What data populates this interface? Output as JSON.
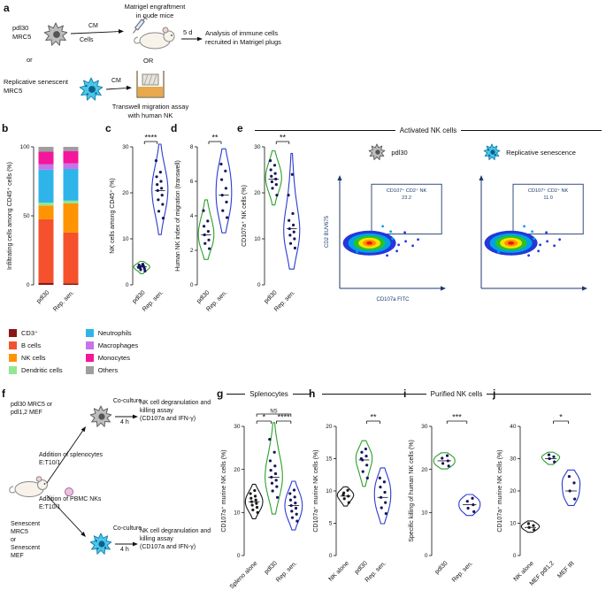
{
  "panels": {
    "a": "a",
    "b": "b",
    "c": "c",
    "d": "d",
    "e": "e",
    "f": "f",
    "g": "g",
    "h": "h",
    "i": "i",
    "j": "j"
  },
  "panel_a": {
    "cell1_label": "pdl30\nMRC5",
    "or1": "or",
    "cell2_label": "Replicative senescent\nMRC5",
    "cm1": "CM",
    "cells_label": "Cells",
    "cm2": "CM",
    "matrigel_title": "Matrigel engraftment\nin nude mice",
    "duration": "5 d",
    "analysis": "Analysis of immune cells\nrecruited in Matrigel plugs",
    "or2": "OR",
    "transwell_caption": "Transwell migration assay\nwith human NK"
  },
  "legend": {
    "items": [
      {
        "label": "CD3⁺",
        "color": "#8c1515"
      },
      {
        "label": "B cells",
        "color": "#f4512c"
      },
      {
        "label": "NK cells",
        "color": "#ff9300"
      },
      {
        "label": "Dendritic cells",
        "color": "#90e890"
      },
      {
        "label": "Neutrophils",
        "color": "#2fb4ea"
      },
      {
        "label": "Macrophages",
        "color": "#c873e8"
      },
      {
        "label": "Monocytes",
        "color": "#f4169b"
      },
      {
        "label": "Others",
        "color": "#9e9e9e"
      }
    ]
  },
  "panel_e": {
    "header": "Activated NK cells",
    "flow": {
      "left_title": "pdl30",
      "right_title": "Replicative senescence",
      "gate_label": "CD107⁺ CD2⁺ NK",
      "left_value": "23.2",
      "right_value": "11.0",
      "y_axis": "CD2 BUV675",
      "x_axis": "CD107a FITC"
    }
  },
  "panel_f": {
    "top_cells": "pdl30 MRC5 or\npdl1,2 MEF",
    "coculture_top": "Co-culture",
    "hours_top": "4 h",
    "assay_top": "NK cell degranulation and\nkilling assay\n(CD107a and IFN-γ)",
    "splenocytes": "Addition of splenocytes\nE:T10/1",
    "pbmc": "Addition of PBMC NKs\nE:T10/1",
    "bottom_cells": "Senescent\nMRC5\nor\nSenescent\nMEF",
    "coculture_bottom": "Co-culture",
    "hours_bottom": "4 h",
    "assay_bottom": "NK cell degranulation and\nkilling assay\n(CD107a and IFN-γ)"
  },
  "panel_g_header": "Splenocytes",
  "panel_hij_header": "Purified NK cells",
  "chart_data": [
    {
      "id": "b",
      "type": "stacked_bar",
      "ylabel": "Infiltrating cells among CD45⁺ cells (%)",
      "ylim": [
        0,
        100
      ],
      "yticks": [
        0,
        50,
        100
      ],
      "categories": [
        "pdl30",
        "Rep. sen."
      ],
      "series": [
        {
          "name": "CD3⁺",
          "color": "#8c1515",
          "values": [
            1.5,
            1
          ]
        },
        {
          "name": "B cells",
          "color": "#f4512c",
          "values": [
            46,
            37
          ]
        },
        {
          "name": "NK cells",
          "color": "#ff9300",
          "values": [
            10,
            21
          ]
        },
        {
          "name": "Dendritic cells",
          "color": "#90e890",
          "values": [
            2,
            2
          ]
        },
        {
          "name": "Neutrophils",
          "color": "#2fb4ea",
          "values": [
            24,
            23
          ]
        },
        {
          "name": "Macrophages",
          "color": "#c873e8",
          "values": [
            4,
            4
          ]
        },
        {
          "name": "Monocytes",
          "color": "#f4169b",
          "values": [
            9,
            9
          ]
        },
        {
          "name": "Others",
          "color": "#9e9e9e",
          "values": [
            3.5,
            3
          ]
        }
      ]
    },
    {
      "id": "c",
      "type": "violin",
      "ylabel": "NK cells among CD45⁺ (%)",
      "ylim": [
        0,
        30
      ],
      "yticks": [
        0,
        10,
        20,
        30
      ],
      "groups": [
        {
          "label": "pdl30",
          "color": "#2ca02c",
          "points": [
            3.0,
            3.3,
            3.5,
            3.7,
            3.9,
            4.0,
            4.1,
            4.3,
            4.5,
            3.8,
            4.2
          ]
        },
        {
          "label": "Rep. sen.",
          "color": "#2a3bd0",
          "points": [
            14.5,
            16,
            17.5,
            18.5,
            19.5,
            20.5,
            21,
            21.8,
            22.5,
            23.5,
            24.5,
            27
          ]
        }
      ],
      "sigs": [
        {
          "from": 0,
          "to": 1,
          "label": "****"
        }
      ]
    },
    {
      "id": "d",
      "type": "violin",
      "ylabel": "Human NK index of migration (transwell)",
      "ylim": [
        0,
        8
      ],
      "yticks": [
        0,
        2,
        4,
        6,
        8
      ],
      "groups": [
        {
          "label": "pdl30",
          "color": "#2ca02c",
          "points": [
            2.1,
            2.4,
            2.6,
            2.9,
            3.1,
            3.4,
            3.7,
            4.3
          ]
        },
        {
          "label": "Rep. sen.",
          "color": "#2a3bd0",
          "points": [
            3.9,
            4.3,
            4.8,
            5.2,
            5.6,
            6.1,
            6.6,
            7.0
          ]
        }
      ],
      "sigs": [
        {
          "from": 0,
          "to": 1,
          "label": "**"
        }
      ]
    },
    {
      "id": "e",
      "type": "violin",
      "ylabel": "CD107a⁺ NK cells (%)",
      "ylim": [
        0,
        30
      ],
      "yticks": [
        0,
        10,
        20,
        30
      ],
      "groups": [
        {
          "label": "pdl30",
          "color": "#2ca02c",
          "points": [
            19.5,
            21,
            21.8,
            22.4,
            23,
            23.6,
            24.2,
            25,
            26,
            27
          ]
        },
        {
          "label": "Rep. sen.",
          "color": "#2a3bd0",
          "points": [
            8,
            9,
            10,
            10.8,
            11.5,
            12.2,
            13,
            14,
            15.5,
            19.5,
            24
          ]
        }
      ],
      "sigs": [
        {
          "from": 0,
          "to": 1,
          "label": "**"
        }
      ]
    },
    {
      "id": "g",
      "type": "violin",
      "ylabel": "CD107a⁺ murine NK cells (%)",
      "ylim": [
        0,
        30
      ],
      "yticks": [
        0,
        10,
        20,
        30
      ],
      "groups": [
        {
          "label": "Spleno alone",
          "color": "#1a1a1a",
          "point_color": "#1a1a1a",
          "points": [
            10,
            10.6,
            11.2,
            11.7,
            12.1,
            12.5,
            12.9,
            13.3,
            13.8,
            14.4,
            15.1
          ]
        },
        {
          "label": "pdl30",
          "color": "#2ca02c",
          "points": [
            13.5,
            15,
            16,
            16.8,
            17.5,
            18.2,
            19,
            19.8,
            20.8,
            22,
            24,
            27
          ]
        },
        {
          "label": "Rep. sen.",
          "color": "#2a3bd0",
          "points": [
            8,
            8.8,
            9.6,
            10.3,
            11,
            11.6,
            12.2,
            12.9,
            13.6,
            14.4,
            15.2
          ]
        }
      ],
      "sigs": [
        {
          "from": 0,
          "to": 1,
          "label": "*"
        },
        {
          "from": 0,
          "to": 2,
          "label": "NS"
        },
        {
          "from": 1,
          "to": 2,
          "label": "****"
        }
      ]
    },
    {
      "id": "h",
      "type": "violin",
      "ylabel": "CD107a⁺ murine NK cells (%)",
      "ylim": [
        0,
        20
      ],
      "yticks": [
        0,
        5,
        10,
        15,
        20
      ],
      "groups": [
        {
          "label": "NK alone",
          "color": "#1a1a1a",
          "point_color": "#1a1a1a",
          "points": [
            8.2,
            8.8,
            9.2,
            9.7,
            10.1,
            9.4
          ]
        },
        {
          "label": "pdl30",
          "color": "#2ca02c",
          "points": [
            12,
            13,
            14,
            14.8,
            15.4,
            16,
            16.5,
            15
          ]
        },
        {
          "label": "Rep. sen.",
          "color": "#2a3bd0",
          "points": [
            6.5,
            7.4,
            8.2,
            9,
            9.8,
            10.6,
            11.4,
            12
          ]
        }
      ],
      "sigs": [
        {
          "from": 1,
          "to": 2,
          "label": "**"
        }
      ]
    },
    {
      "id": "i",
      "type": "violin",
      "ylabel": "Specific killing of human NK cells (%)",
      "ylim": [
        0,
        30
      ],
      "yticks": [
        0,
        10,
        20,
        30
      ],
      "groups": [
        {
          "label": "pdl30",
          "color": "#2ca02c",
          "points": [
            20.8,
            21.4,
            22,
            22.6,
            23.2
          ]
        },
        {
          "label": "Rep. sen.",
          "color": "#2a3bd0",
          "points": [
            10.2,
            11,
            11.8,
            12.6,
            13.3
          ]
        }
      ],
      "sigs": [
        {
          "from": 0,
          "to": 1,
          "label": "***"
        }
      ]
    },
    {
      "id": "j",
      "type": "violin",
      "ylabel": "CD107a⁺ murine NK cells (%)",
      "ylim": [
        0,
        40
      ],
      "yticks": [
        0,
        10,
        20,
        30,
        40
      ],
      "groups": [
        {
          "label": "NK alone",
          "color": "#1a1a1a",
          "point_color": "#1a1a1a",
          "points": [
            8,
            8.7,
            9.3,
            9.9
          ]
        },
        {
          "label": "MEF pdl1,2",
          "color": "#2ca02c",
          "points": [
            29,
            30,
            30.6,
            31.2
          ]
        },
        {
          "label": "MEF IR",
          "color": "#2a3bd0",
          "points": [
            17.5,
            20,
            22.5,
            24.5
          ]
        }
      ],
      "sigs": [
        {
          "from": 1,
          "to": 2,
          "label": "*"
        }
      ]
    }
  ]
}
